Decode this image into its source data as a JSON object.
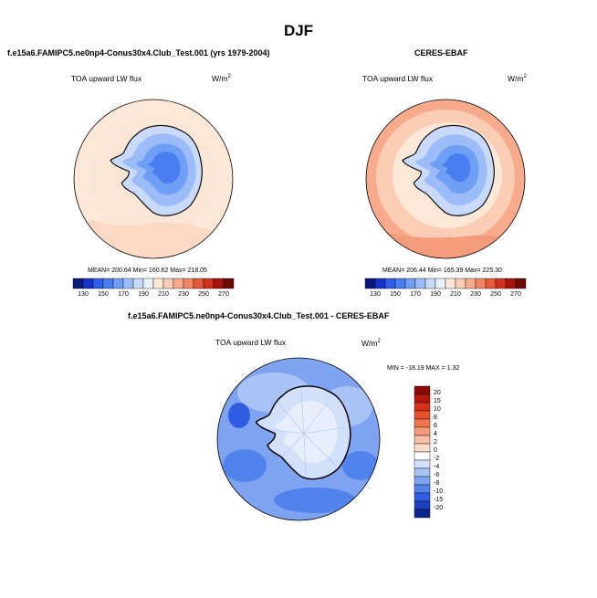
{
  "page": {
    "season_title": "DJF"
  },
  "chart_data": [
    {
      "type": "heatmap",
      "projection": "south-polar-stereographic",
      "title": "f.e15a6.FAMIPC5.ne0np4-Conus30x4.Club_Test.001 (yrs 1979-2004)",
      "variable": "TOA upward LW flux",
      "units": "W/m",
      "units_exp": "2",
      "stats": {
        "mean": 200.64,
        "min": 160.62,
        "max": 218.05
      },
      "stats_text": "MEAN= 200.64  Min= 160.62  Max= 218.05",
      "colorbar_ticks": [
        "130",
        "150",
        "170",
        "190",
        "210",
        "230",
        "250",
        "270"
      ],
      "colorbar_colors": [
        "#0a1a7a",
        "#1732c8",
        "#2f5ee6",
        "#4a7df0",
        "#6f9ef5",
        "#9cbcf7",
        "#c8d9f9",
        "#eaf0fc",
        "#fde7d7",
        "#fbcdb5",
        "#f7aa8c",
        "#f08463",
        "#e65a3b",
        "#d1321f",
        "#a4140d",
        "#6e0a06"
      ],
      "colorbar_orientation": "horizontal"
    },
    {
      "type": "heatmap",
      "projection": "south-polar-stereographic",
      "title": "CERES-EBAF",
      "variable": "TOA upward LW flux",
      "units": "W/m",
      "units_exp": "2",
      "stats": {
        "mean": 206.44,
        "min": 165.39,
        "max": 225.3
      },
      "stats_text": "MEAN= 206.44  Min= 165.39  Max= 225.30",
      "colorbar_ticks": [
        "130",
        "150",
        "170",
        "190",
        "210",
        "230",
        "250",
        "270"
      ],
      "colorbar_colors": [
        "#0a1a7a",
        "#1732c8",
        "#2f5ee6",
        "#4a7df0",
        "#6f9ef5",
        "#9cbcf7",
        "#c8d9f9",
        "#eaf0fc",
        "#fde7d7",
        "#fbcdb5",
        "#f7aa8c",
        "#f08463",
        "#e65a3b",
        "#d1321f",
        "#a4140d",
        "#6e0a06"
      ],
      "colorbar_orientation": "horizontal"
    },
    {
      "type": "heatmap",
      "projection": "south-polar-stereographic",
      "title": "f.e15a6.FAMIPC5.ne0np4-Conus30x4.Club_Test.001 - CERES-EBAF",
      "variable": "TOA upward LW flux",
      "units": "W/m",
      "units_exp": "2",
      "stats": {
        "min": -18.19,
        "max": 1.32
      },
      "stats_text": "MIN = -18.19  MAX =   1.32",
      "colorbar_ticks": [
        "20",
        "15",
        "10",
        "8",
        "6",
        "4",
        "2",
        "0",
        "-2",
        "-4",
        "-6",
        "-8",
        "-10",
        "-15",
        "-20"
      ],
      "colorbar_colors": [
        "#8b0a05",
        "#b4170c",
        "#d62f1a",
        "#e9502f",
        "#f1734f",
        "#f59a7a",
        "#f8bea5",
        "#fbdccb",
        "#ffffff",
        "#d3e0fa",
        "#a9c3f6",
        "#7ea4f1",
        "#5283ec",
        "#2f5ee2",
        "#1c3fc0",
        "#0e2590"
      ],
      "colorbar_orientation": "vertical"
    }
  ]
}
